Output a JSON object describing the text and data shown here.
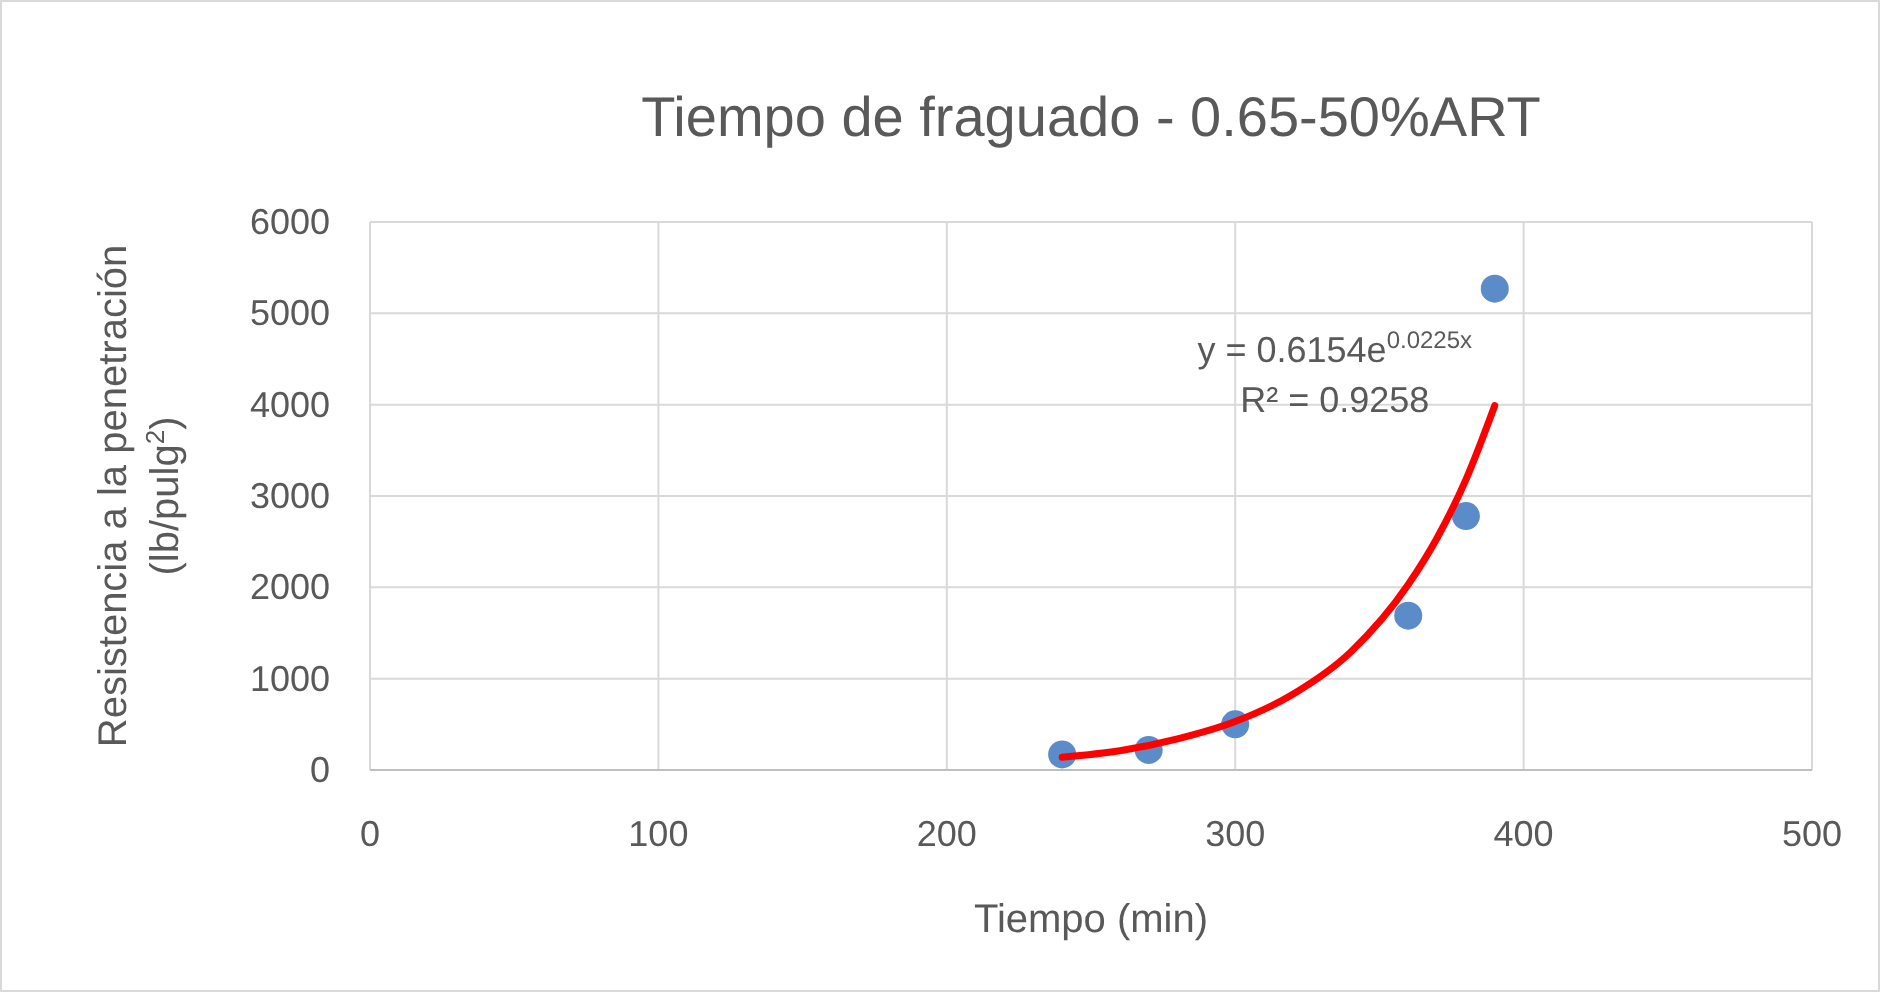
{
  "chart_data": {
    "type": "scatter",
    "title": "Tiempo de fraguado - 0.65-50%ART",
    "xlabel": "Tiempo (min)",
    "ylabel": "Resistencia a la penetración (lb/pulg$^{2}$)",
    "xlim": [
      0,
      500
    ],
    "xticks": [
      0,
      100,
      200,
      300,
      400,
      500
    ],
    "ylim": [
      0,
      6000
    ],
    "yticks": [
      0,
      1000,
      2000,
      3000,
      4000,
      5000,
      6000
    ],
    "grid": true,
    "annotations": [
      "y = 0.6154e$^{0.0225x}$",
      "R² = 0.9258"
    ],
    "series": [
      {
        "color": "#5b8bc9",
        "marker": "circle",
        "x": [
          240,
          270,
          300,
          360,
          380,
          390
        ],
        "values": [
          170,
          220,
          500,
          1690,
          2780,
          5270
        ]
      },
      {
        "type": "line",
        "color": "#ff0000",
        "marker": "none",
        "line_style": "solid",
        "x": [
          240,
          260,
          280,
          300,
          320,
          340,
          360,
          370,
          380,
          390
        ],
        "values": [
          140,
          210,
          340,
          530,
          830,
          1290,
          2030,
          2540,
          3180,
          3990
        ]
      }
    ]
  }
}
